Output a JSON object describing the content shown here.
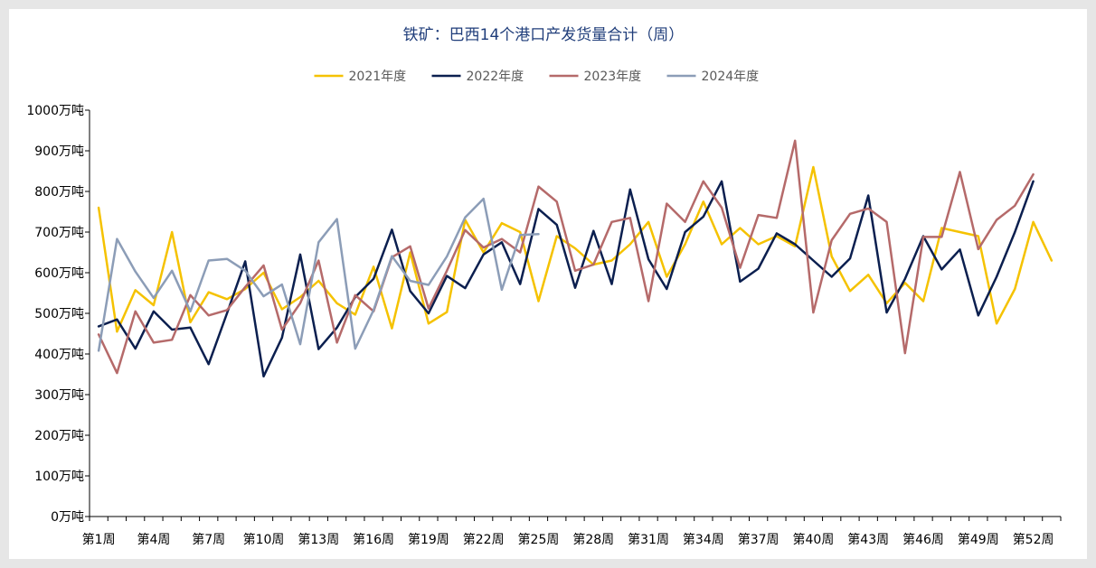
{
  "chart_data": {
    "type": "line",
    "title": "铁矿：巴西14个港口产发货量合计（周）",
    "y_unit": "万吨",
    "ylim": [
      0,
      1000
    ],
    "y_ticks": [
      "0万吨",
      "100万吨",
      "200万吨",
      "300万吨",
      "400万吨",
      "500万吨",
      "600万吨",
      "700万吨",
      "800万吨",
      "900万吨",
      "1000万吨"
    ],
    "x_tick_labels": [
      "第1周",
      "第4周",
      "第7周",
      "第10周",
      "第13周",
      "第16周",
      "第19周",
      "第22周",
      "第25周",
      "第28周",
      "第31周",
      "第34周",
      "第37周",
      "第40周",
      "第43周",
      "第46周",
      "第49周",
      "第52周"
    ],
    "x_tick_weeks": [
      1,
      4,
      7,
      10,
      13,
      16,
      19,
      22,
      25,
      28,
      31,
      34,
      37,
      40,
      43,
      46,
      49,
      52
    ],
    "legend_position": "top",
    "grid": false,
    "series": [
      {
        "name": "2021年度",
        "color": "#f5c200",
        "values": [
          760,
          455,
          557,
          520,
          700,
          478,
          552,
          535,
          560,
          600,
          510,
          540,
          580,
          525,
          497,
          615,
          463,
          650,
          475,
          503,
          730,
          650,
          722,
          700,
          530,
          690,
          660,
          620,
          630,
          670,
          725,
          590,
          670,
          775,
          670,
          710,
          670,
          690,
          665,
          860,
          640,
          555,
          595,
          525,
          575,
          530,
          710,
          700,
          690,
          475,
          560,
          725,
          630
        ]
      },
      {
        "name": "2022年度",
        "color": "#0b1f4f",
        "values": [
          468,
          485,
          413,
          505,
          460,
          465,
          375,
          500,
          628,
          345,
          440,
          645,
          412,
          465,
          540,
          585,
          706,
          555,
          500,
          592,
          562,
          645,
          675,
          572,
          757,
          718,
          563,
          703,
          572,
          805,
          633,
          560,
          700,
          738,
          825,
          578,
          610,
          697,
          670,
          630,
          590,
          635,
          790,
          502,
          585,
          690,
          608,
          657,
          495,
          590,
          700,
          825
        ]
      },
      {
        "name": "2023年度",
        "color": "#b56a6a",
        "values": [
          448,
          353,
          505,
          428,
          435,
          545,
          495,
          508,
          565,
          618,
          460,
          525,
          630,
          428,
          545,
          505,
          638,
          665,
          512,
          605,
          705,
          662,
          683,
          650,
          812,
          775,
          605,
          620,
          725,
          735,
          530,
          770,
          725,
          825,
          760,
          612,
          742,
          735,
          925,
          502,
          680,
          745,
          758,
          725,
          402,
          688,
          688,
          848,
          658,
          730,
          765,
          842
        ]
      },
      {
        "name": "2024年度",
        "color": "#8c9db7",
        "values": [
          408,
          683,
          603,
          538,
          605,
          505,
          630,
          634,
          605,
          542,
          571,
          424,
          675,
          732,
          413,
          508,
          641,
          580,
          570,
          640,
          736,
          782,
          558,
          693,
          695
        ]
      }
    ]
  }
}
